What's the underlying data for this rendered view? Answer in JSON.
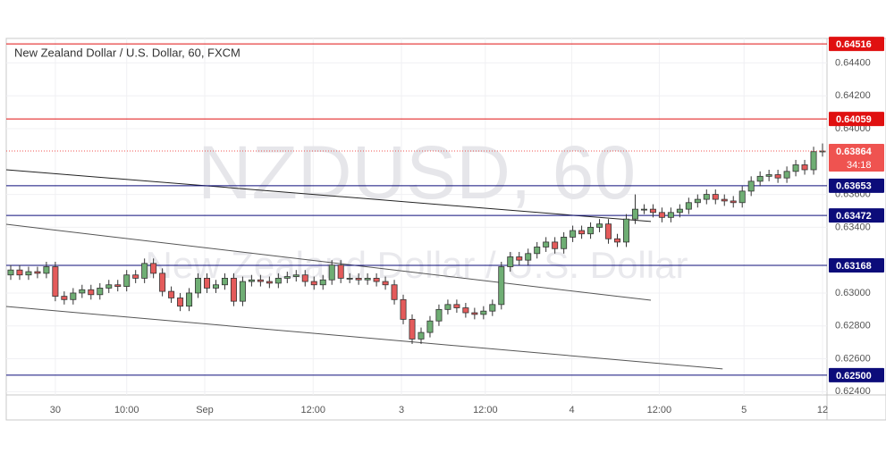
{
  "chart_data": {
    "type": "candlestick",
    "title": "New Zealand Dollar / U.S. Dollar, 60, FXCM",
    "watermark_title": "NZDUSD, 60",
    "watermark_subtitle": "New Zealand Dollar / U.S. Dollar",
    "up_color": "#6fae74",
    "down_color": "#e45b5b",
    "grid": true,
    "xlim": [
      -0.5,
      91.5
    ],
    "ylim": [
      0.6238,
      0.64549
    ],
    "xticks": [
      {
        "value": 5.0,
        "label": "30"
      },
      {
        "value": 13.0,
        "label": "10:00"
      },
      {
        "value": 21.75,
        "label": "Sep"
      },
      {
        "value": 33.9,
        "label": "12:00"
      },
      {
        "value": 43.8,
        "label": "3"
      },
      {
        "value": 53.2,
        "label": "12:00"
      },
      {
        "value": 62.9,
        "label": "4"
      },
      {
        "value": 72.7,
        "label": "12:00"
      },
      {
        "value": 82.2,
        "label": "5"
      },
      {
        "value": 91.0,
        "label": "12"
      }
    ],
    "yticks": [
      {
        "value": 0.644,
        "label": "0.64400"
      },
      {
        "value": 0.642,
        "label": "0.64200"
      },
      {
        "value": 0.64,
        "label": "0.64000"
      },
      {
        "value": 0.636,
        "label": "0.63600"
      },
      {
        "value": 0.634,
        "label": "0.63400"
      },
      {
        "value": 0.63,
        "label": "0.63000"
      },
      {
        "value": 0.628,
        "label": "0.62800"
      },
      {
        "value": 0.626,
        "label": "0.62600"
      },
      {
        "value": 0.624,
        "label": "0.62400"
      }
    ],
    "levels": [
      {
        "value": 0.64516,
        "color": "#e01010"
      },
      {
        "value": 0.64059,
        "color": "#e01010"
      },
      {
        "value": 0.63653,
        "color": "#0c0c7a"
      },
      {
        "value": 0.63472,
        "color": "#0c0c7a"
      },
      {
        "value": 0.63168,
        "color": "#0c0c7a"
      },
      {
        "value": 0.625,
        "label": "0.62500",
        "color": "#0c0c7a"
      }
    ],
    "last_price": 0.63864,
    "last_price_color": "#ef5350",
    "countdown": "34:18",
    "trendlines": [
      {
        "from": [
          -0.5,
          0.6375
        ],
        "to": [
          71.76,
          0.63435
        ],
        "color": "#222222"
      },
      {
        "from": [
          -0.5,
          0.63418
        ],
        "to": [
          71.76,
          0.62956
        ],
        "color": "#555555"
      },
      {
        "from": [
          -0.5,
          0.62918
        ],
        "to": [
          79.8,
          0.62538
        ],
        "color": "#555555"
      }
    ],
    "open": [
      0.6311,
      0.6314,
      0.6311,
      0.6313,
      0.6312,
      0.6316,
      0.6298,
      0.6296,
      0.63,
      0.6302,
      0.6299,
      0.6303,
      0.6305,
      0.6304,
      0.6311,
      0.6309,
      0.6318,
      0.6312,
      0.6301,
      0.6297,
      0.6292,
      0.63,
      0.6309,
      0.6303,
      0.6305,
      0.6309,
      0.6295,
      0.6307,
      0.6308,
      0.6307,
      0.6306,
      0.6309,
      0.631,
      0.6311,
      0.6307,
      0.6305,
      0.6308,
      0.6317,
      0.6309,
      0.6309,
      0.6308,
      0.6309,
      0.6307,
      0.6305,
      0.6296,
      0.6284,
      0.6272,
      0.6276,
      0.6283,
      0.629,
      0.6293,
      0.6291,
      0.6288,
      0.6287,
      0.6289,
      0.6293,
      0.6316,
      0.6322,
      0.632,
      0.6324,
      0.6328,
      0.6331,
      0.6327,
      0.6334,
      0.6338,
      0.6336,
      0.634,
      0.6342,
      0.6333,
      0.6331,
      0.6345,
      0.6351,
      0.6351,
      0.6349,
      0.6346,
      0.6349,
      0.6351,
      0.6355,
      0.6357,
      0.636,
      0.6357,
      0.6356,
      0.6355,
      0.6362,
      0.6368,
      0.6371,
      0.6372,
      0.637,
      0.6374,
      0.6378,
      0.6375,
      0.6386
    ],
    "high": [
      0.6317,
      0.6317,
      0.6316,
      0.6316,
      0.6319,
      0.6319,
      0.6301,
      0.6303,
      0.6305,
      0.6305,
      0.6306,
      0.6308,
      0.6308,
      0.6314,
      0.6314,
      0.6321,
      0.6321,
      0.6315,
      0.6304,
      0.63,
      0.6303,
      0.6312,
      0.6312,
      0.6308,
      0.6312,
      0.6312,
      0.631,
      0.6311,
      0.6311,
      0.631,
      0.6312,
      0.6313,
      0.6314,
      0.6314,
      0.631,
      0.6311,
      0.632,
      0.632,
      0.6312,
      0.6312,
      0.6312,
      0.6312,
      0.631,
      0.6308,
      0.6299,
      0.6287,
      0.6279,
      0.6286,
      0.6293,
      0.6296,
      0.6296,
      0.6294,
      0.6291,
      0.6292,
      0.6296,
      0.6319,
      0.6325,
      0.6325,
      0.6327,
      0.6331,
      0.6334,
      0.6334,
      0.6337,
      0.6341,
      0.6341,
      0.6343,
      0.6345,
      0.6345,
      0.6336,
      0.6348,
      0.636,
      0.6354,
      0.6354,
      0.6352,
      0.6352,
      0.6354,
      0.6358,
      0.636,
      0.6363,
      0.6363,
      0.636,
      0.6359,
      0.6365,
      0.6371,
      0.6374,
      0.6375,
      0.6375,
      0.6377,
      0.6381,
      0.6381,
      0.6389,
      0.6391
    ],
    "low": [
      0.6308,
      0.6308,
      0.6308,
      0.6309,
      0.6309,
      0.6295,
      0.6293,
      0.6293,
      0.6297,
      0.6296,
      0.6296,
      0.63,
      0.6301,
      0.6301,
      0.6306,
      0.6306,
      0.6309,
      0.6298,
      0.6294,
      0.6289,
      0.6289,
      0.6297,
      0.63,
      0.63,
      0.6302,
      0.6292,
      0.6292,
      0.6304,
      0.6304,
      0.6303,
      0.6303,
      0.6306,
      0.6307,
      0.6304,
      0.6302,
      0.6302,
      0.6305,
      0.6306,
      0.6306,
      0.6305,
      0.6305,
      0.6304,
      0.6302,
      0.6293,
      0.6281,
      0.6269,
      0.6269,
      0.6273,
      0.628,
      0.6287,
      0.6288,
      0.6285,
      0.6284,
      0.6284,
      0.6286,
      0.629,
      0.6313,
      0.6317,
      0.6317,
      0.6321,
      0.6325,
      0.6324,
      0.6324,
      0.6331,
      0.6333,
      0.6333,
      0.6337,
      0.633,
      0.6328,
      0.6328,
      0.6342,
      0.6348,
      0.6346,
      0.6343,
      0.6343,
      0.6346,
      0.6348,
      0.6352,
      0.6354,
      0.6354,
      0.6353,
      0.6352,
      0.6352,
      0.6359,
      0.6365,
      0.6368,
      0.6367,
      0.6367,
      0.6371,
      0.6372,
      0.6372,
      0.6383
    ],
    "close": [
      0.6314,
      0.6311,
      0.6313,
      0.6312,
      0.6316,
      0.6298,
      0.6296,
      0.63,
      0.6302,
      0.6299,
      0.6303,
      0.6305,
      0.6304,
      0.6311,
      0.6309,
      0.6318,
      0.6312,
      0.6301,
      0.6297,
      0.6292,
      0.63,
      0.6309,
      0.6303,
      0.6305,
      0.6309,
      0.6295,
      0.6307,
      0.6308,
      0.6307,
      0.6306,
      0.6309,
      0.631,
      0.6311,
      0.6307,
      0.6305,
      0.6308,
      0.6317,
      0.6309,
      0.6309,
      0.6308,
      0.6309,
      0.6307,
      0.6305,
      0.6296,
      0.6284,
      0.6272,
      0.6276,
      0.6283,
      0.629,
      0.6293,
      0.6291,
      0.6288,
      0.6287,
      0.6289,
      0.6293,
      0.6316,
      0.6322,
      0.632,
      0.6324,
      0.6328,
      0.6331,
      0.6327,
      0.6334,
      0.6338,
      0.6336,
      0.634,
      0.6342,
      0.6333,
      0.6331,
      0.6345,
      0.6351,
      0.6351,
      0.6349,
      0.6346,
      0.6349,
      0.6351,
      0.6355,
      0.6357,
      0.636,
      0.6357,
      0.6356,
      0.6355,
      0.6362,
      0.6368,
      0.6371,
      0.6372,
      0.637,
      0.6374,
      0.6378,
      0.6375,
      0.6386,
      0.63864
    ]
  }
}
